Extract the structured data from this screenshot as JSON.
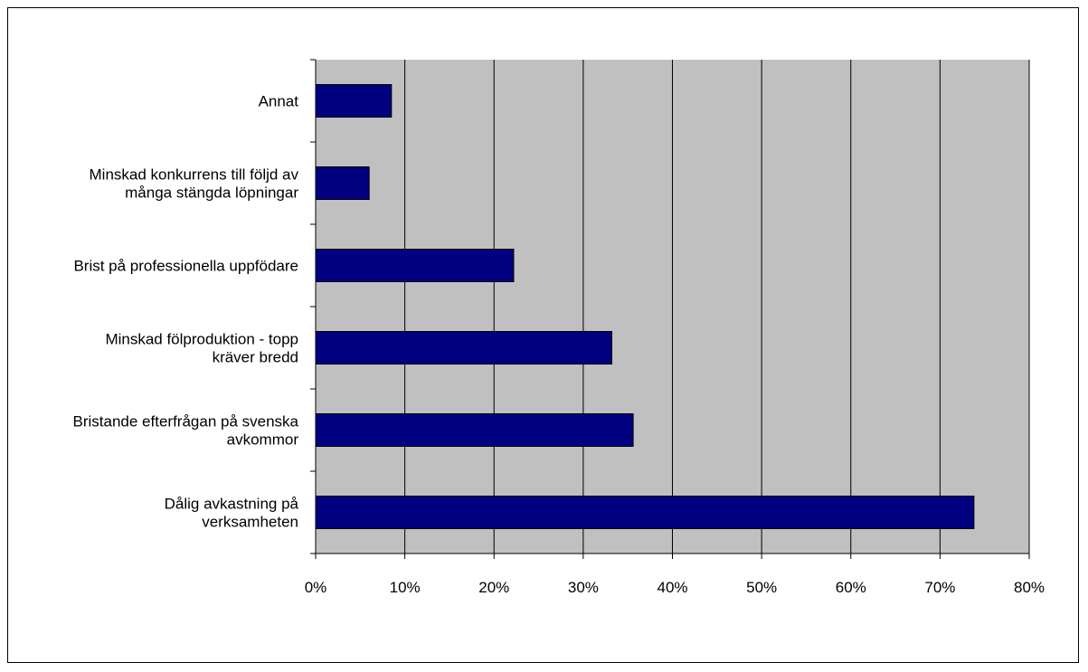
{
  "chart_data": {
    "type": "bar",
    "orientation": "horizontal",
    "categories": [
      [
        "Annat"
      ],
      [
        "Minskad konkurrens till följd av",
        "många stängda löpningar"
      ],
      [
        "Brist på professionella uppfödare"
      ],
      [
        "Minskad fölproduktion - topp",
        "kräver bredd"
      ],
      [
        "Bristande efterfrågan på svenska",
        "avkommor"
      ],
      [
        "Dålig avkastning på",
        "verksamheten"
      ]
    ],
    "values": [
      8.5,
      6,
      22.2,
      33.2,
      35.6,
      73.8
    ],
    "xlim": [
      0,
      80
    ],
    "x_ticks": [
      "0%",
      "10%",
      "20%",
      "30%",
      "40%",
      "50%",
      "60%",
      "70%",
      "80%"
    ],
    "title": "",
    "xlabel": "",
    "ylabel": "",
    "grid": "vertical",
    "colors": {
      "bar": "#000080",
      "plot_background": "#c0c0c0",
      "gridline": "#000000"
    }
  }
}
